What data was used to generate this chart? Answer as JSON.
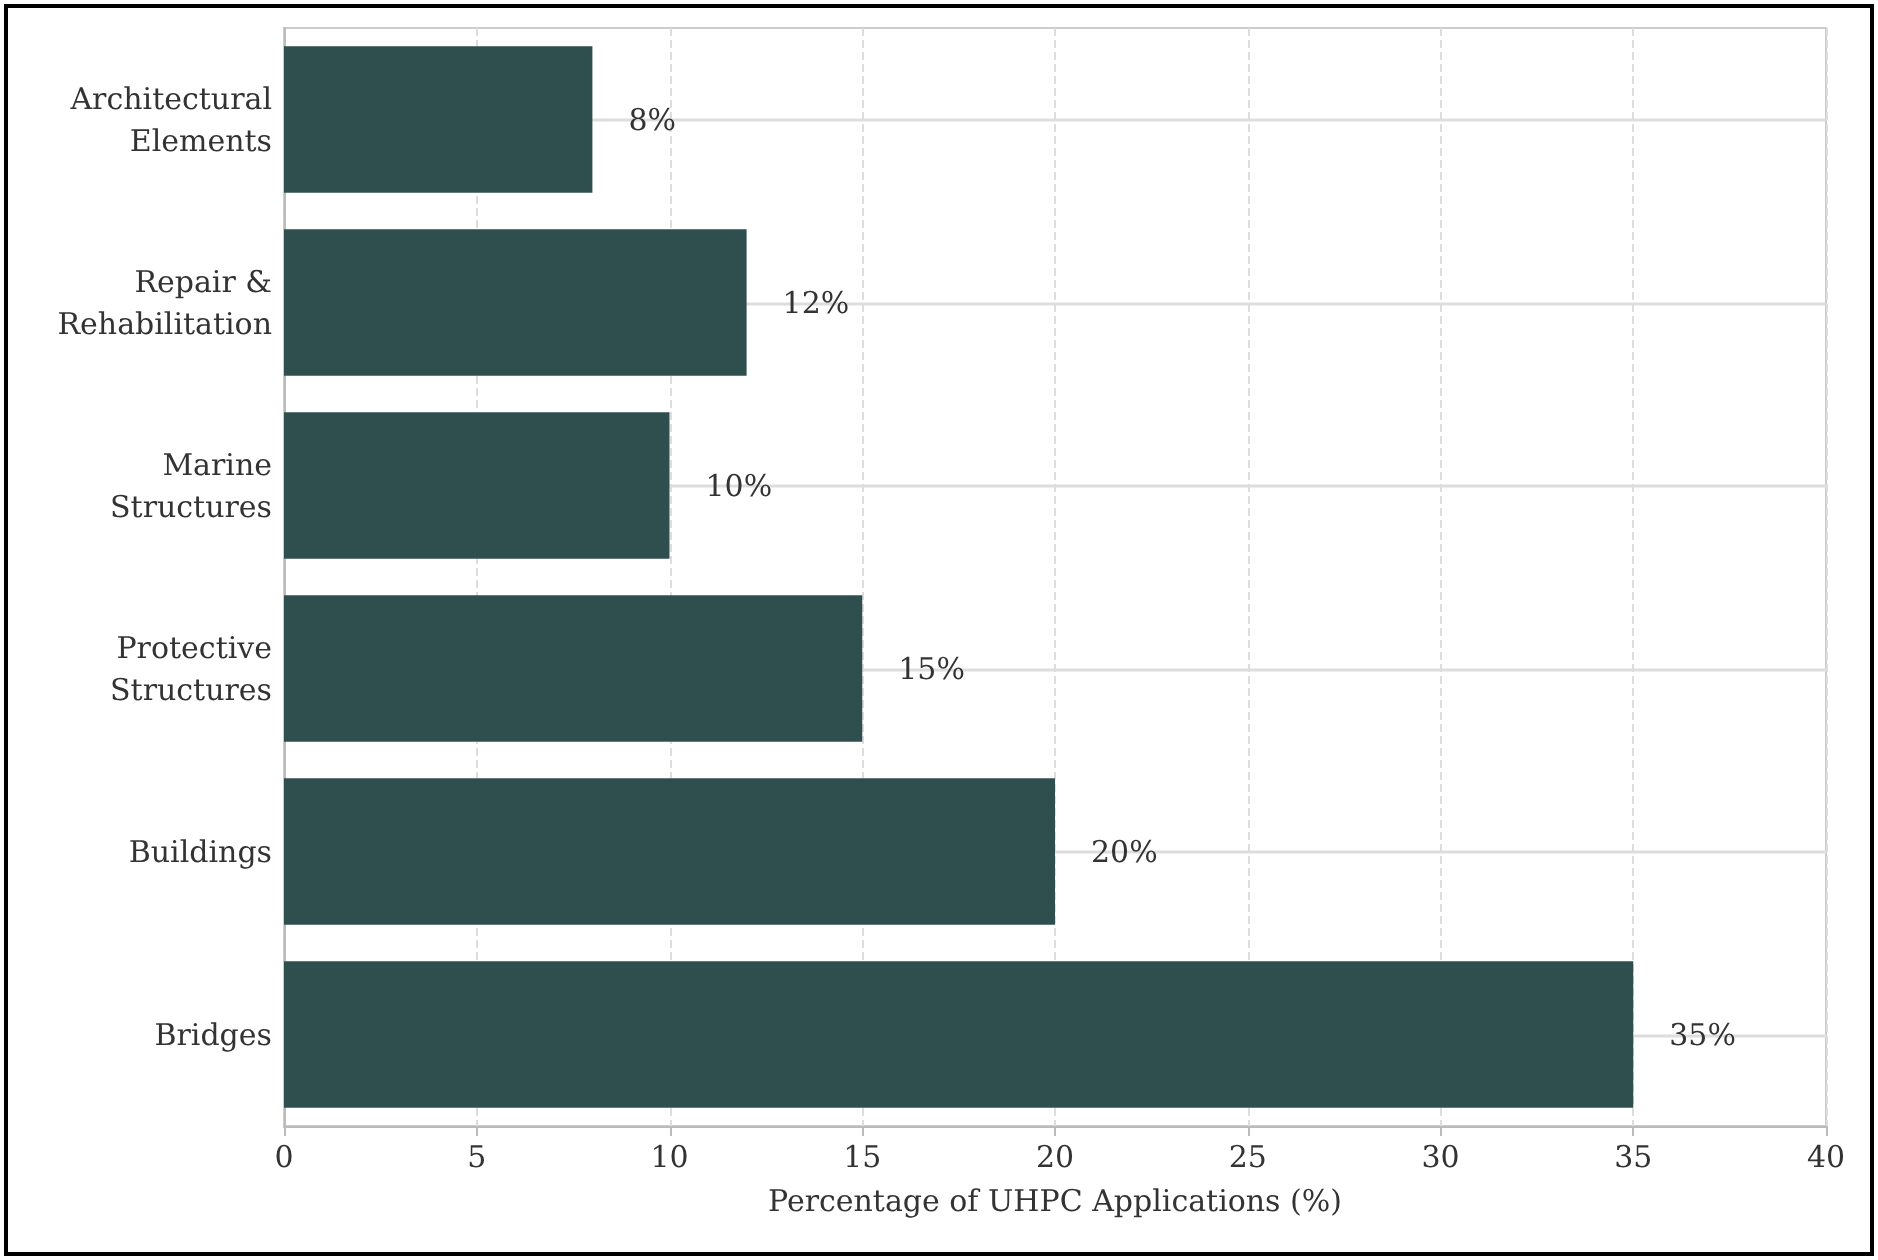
{
  "chart_data": {
    "type": "bar",
    "orientation": "horizontal",
    "categories": [
      "Architectural\nElements",
      "Repair &\nRehabilitation",
      "Marine\nStructures",
      "Protective\nStructures",
      "Buildings",
      "Bridges"
    ],
    "values": [
      8,
      12,
      10,
      15,
      20,
      35
    ],
    "value_labels": [
      "8%",
      "12%",
      "10%",
      "15%",
      "20%",
      "35%"
    ],
    "color": "#2f4f4f",
    "xlabel": "Percentage of UHPC Applications (%)",
    "xlim": [
      0,
      40
    ],
    "xticks": [
      0,
      5,
      10,
      15,
      20,
      25,
      30,
      35,
      40
    ],
    "grid": true
  }
}
